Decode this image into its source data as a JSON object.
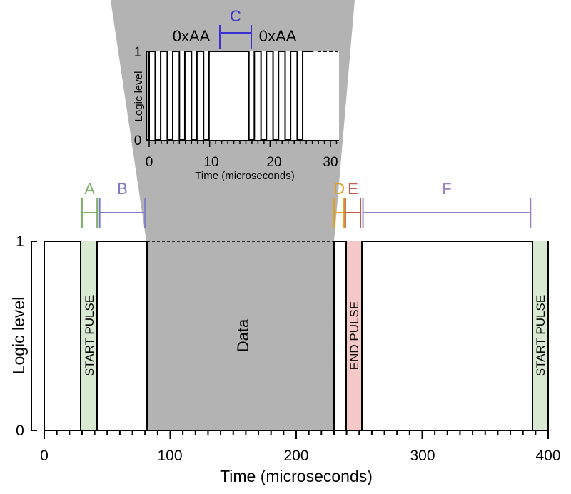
{
  "main": {
    "xlabel": "Time (microseconds)",
    "ylabel": "Logic level",
    "x_ticks": [
      "0",
      "100",
      "200",
      "300",
      "400"
    ],
    "y_ticks": [
      "0",
      "1"
    ],
    "data_label": "Data",
    "pulses": {
      "start1": "START PULSE",
      "end": "END PULSE",
      "start2": "START PULSE"
    },
    "segments": [
      {
        "letter": "A",
        "color": "#7fb069",
        "start": 30,
        "end": 42
      },
      {
        "letter": "B",
        "color": "#7c7cc4",
        "start": 44,
        "end": 80
      },
      {
        "letter": "D",
        "color": "#e0a020",
        "start": 230,
        "end": 238
      },
      {
        "letter": "E",
        "color": "#c05a4a",
        "start": 239,
        "end": 251
      },
      {
        "letter": "F",
        "color": "#9a80c0",
        "start": 253,
        "end": 386
      }
    ]
  },
  "inset": {
    "xlabel": "Time (microseconds)",
    "ylabel": "Logic level",
    "x_ticks": [
      "0",
      "10",
      "20",
      "30"
    ],
    "y_ticks": [
      "0",
      "1"
    ],
    "byte_label_1": "0xAA",
    "byte_label_2": "0xAA",
    "gap_letter": "C",
    "gap_color": "#3a2fd0"
  },
  "colors": {
    "start_pulse": "#d9ead3",
    "end_pulse": "#f6c9c9",
    "data_region": "#b3b3b3"
  }
}
